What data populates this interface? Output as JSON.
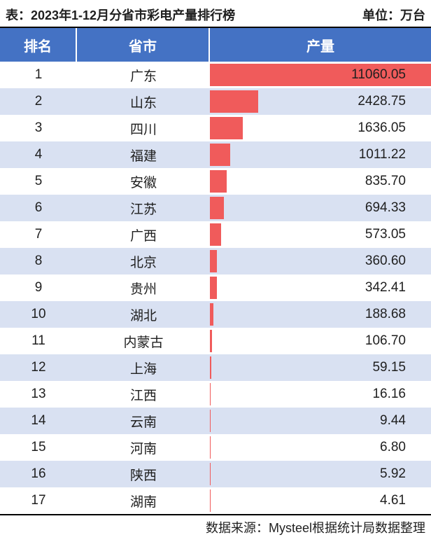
{
  "header": {
    "title_prefix": "表：",
    "title_text": "2023年1-12月分省市彩电产量排行榜",
    "unit_prefix": "单位：",
    "unit_text": "万台"
  },
  "footer": {
    "source_prefix": "数据来源：",
    "source_text": "Mysteel根据统计局数据整理"
  },
  "table": {
    "type": "bar-table",
    "header_bg": "#4472c4",
    "header_fg": "#ffffff",
    "row_even_bg": "#ffffff",
    "row_odd_bg": "#d9e1f2",
    "bar_color": "#f05b5b",
    "text_color": "#1f1f1f",
    "border_color": "#000000",
    "columns": {
      "rank": "排名",
      "province": "省市",
      "value": "产量"
    },
    "max_value": 11060.05,
    "rows": [
      {
        "rank": "1",
        "province": "广东",
        "value": 11060.05,
        "value_text": "11060.05"
      },
      {
        "rank": "2",
        "province": "山东",
        "value": 2428.75,
        "value_text": "2428.75"
      },
      {
        "rank": "3",
        "province": "四川",
        "value": 1636.05,
        "value_text": "1636.05"
      },
      {
        "rank": "4",
        "province": "福建",
        "value": 1011.22,
        "value_text": "1011.22"
      },
      {
        "rank": "5",
        "province": "安徽",
        "value": 835.7,
        "value_text": "835.70"
      },
      {
        "rank": "6",
        "province": "江苏",
        "value": 694.33,
        "value_text": "694.33"
      },
      {
        "rank": "7",
        "province": "广西",
        "value": 573.05,
        "value_text": "573.05"
      },
      {
        "rank": "8",
        "province": "北京",
        "value": 360.6,
        "value_text": "360.60"
      },
      {
        "rank": "9",
        "province": "贵州",
        "value": 342.41,
        "value_text": "342.41"
      },
      {
        "rank": "10",
        "province": "湖北",
        "value": 188.68,
        "value_text": "188.68"
      },
      {
        "rank": "11",
        "province": "内蒙古",
        "value": 106.7,
        "value_text": "106.70"
      },
      {
        "rank": "12",
        "province": "上海",
        "value": 59.15,
        "value_text": "59.15"
      },
      {
        "rank": "13",
        "province": "江西",
        "value": 16.16,
        "value_text": "16.16"
      },
      {
        "rank": "14",
        "province": "云南",
        "value": 9.44,
        "value_text": "9.44"
      },
      {
        "rank": "15",
        "province": "河南",
        "value": 6.8,
        "value_text": "6.80"
      },
      {
        "rank": "16",
        "province": "陕西",
        "value": 5.92,
        "value_text": "5.92"
      },
      {
        "rank": "17",
        "province": "湖南",
        "value": 4.61,
        "value_text": "4.61"
      }
    ]
  }
}
